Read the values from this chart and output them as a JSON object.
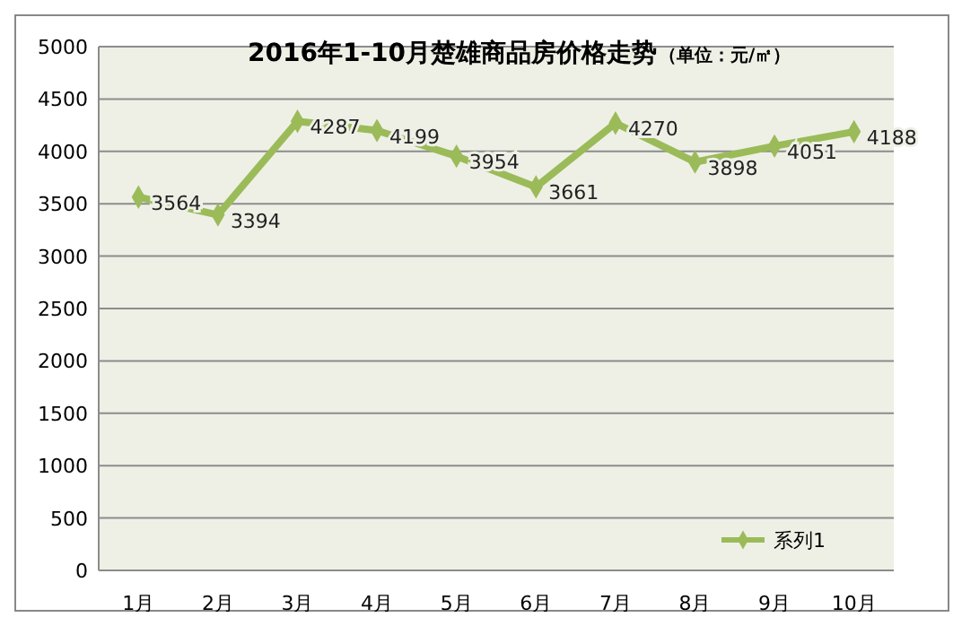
{
  "chart_data": {
    "type": "line",
    "title": "2016年1-10月楚雄商品房价格走势",
    "subtitle": "（单位：元/㎡）",
    "categories": [
      "1月",
      "2月",
      "3月",
      "4月",
      "5月",
      "6月",
      "7月",
      "8月",
      "9月",
      "10月"
    ],
    "series": [
      {
        "name": "系列1",
        "color": "#9bbb59",
        "values": [
          3564,
          3394,
          4287,
          4199,
          3954,
          3661,
          4270,
          3898,
          4051,
          4188
        ]
      }
    ],
    "ylim": [
      0,
      5000
    ],
    "yticks": [
      0,
      500,
      1000,
      1500,
      2000,
      2500,
      3000,
      3500,
      4000,
      4500,
      5000
    ],
    "grid": "y",
    "legend": "bottom right",
    "marker": "diamond",
    "data_labels": true
  }
}
